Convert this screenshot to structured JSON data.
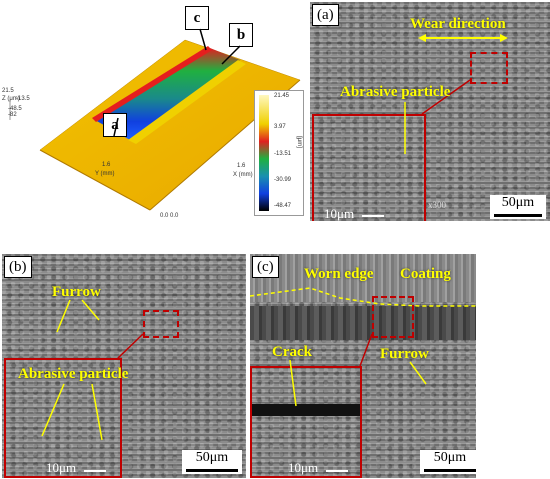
{
  "topo": {
    "callouts": [
      "a",
      "b",
      "c"
    ],
    "axis_z": "Z (μm)",
    "axis_z_ticks": [
      "21.5",
      "-13.5",
      "-48.5",
      "-82"
    ],
    "axis_y": "Y (mm)",
    "axis_x": "X (mm)",
    "tick_y": "1.6",
    "tick_x": "1.6",
    "origin": "0.0   0.0",
    "colorbar_ticks": [
      "21.45",
      "3.97",
      "-13.51",
      "-30.99",
      "-48.47"
    ],
    "colorbar_unit": "[μm]"
  },
  "panel_a": {
    "label": "(a)",
    "wear_direction": "Wear direction",
    "abrasive_particle": "Abrasive particle",
    "inset_scale": "10μm",
    "scale": "50μm",
    "corner": "x300"
  },
  "panel_b": {
    "label": "(b)",
    "furrow": "Furrow",
    "abrasive_particle": "Abrasive particle",
    "inset_scale": "10μm",
    "scale": "50μm"
  },
  "panel_c": {
    "label": "(c)",
    "worn_edge": "Worn edge",
    "coating": "Coating",
    "crack": "Crack",
    "furrow": "Furrow",
    "inset_scale": "10μm",
    "scale": "50μm"
  },
  "colors": {
    "annotation": "#ffff00",
    "frame": "#c00000"
  }
}
